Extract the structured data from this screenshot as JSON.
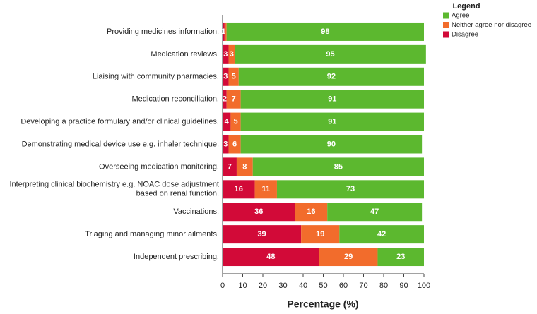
{
  "chart_data": {
    "type": "stacked-bar-horizontal",
    "categories": [
      "Providing medicines information.",
      "Medication reviews.",
      "Liaising with community pharmacies.",
      "Medication reconciliation.",
      "Developing a practice formulary and/or clinical guidelines.",
      "Demonstrating medical device use e.g. inhaler technique.",
      "Overseeing medication monitoring.",
      [
        "Interpreting clinical biochemistry e.g. NOAC dose adjustment",
        "based on renal function."
      ],
      "Vaccinations.",
      "Triaging and managing minor ailments.",
      "Independent prescribing."
    ],
    "series": [
      {
        "name": "Agree",
        "color": "#5cb82f",
        "values": [
          98,
          95,
          92,
          91,
          91,
          90,
          85,
          73,
          47,
          42,
          23
        ]
      },
      {
        "name": "Neither agree nor disagree",
        "color": "#f26c2c",
        "values": [
          1,
          3,
          5,
          7,
          5,
          6,
          8,
          11,
          16,
          19,
          29
        ],
        "value_labels": [
          null,
          "3",
          "5",
          "7",
          "5",
          "6",
          "8",
          "11",
          "16",
          "19",
          "29"
        ]
      },
      {
        "name": "Disagree",
        "color": "#d20a38",
        "values": [
          1,
          3,
          3,
          2,
          4,
          3,
          7,
          16,
          36,
          39,
          48
        ]
      }
    ],
    "xlabel": "Percentage (%)",
    "xlim": [
      0,
      100
    ],
    "xticks": [
      0,
      10,
      20,
      30,
      40,
      50,
      60,
      70,
      80,
      90,
      100
    ],
    "legend_title": "Legend",
    "legend": "top-right"
  }
}
